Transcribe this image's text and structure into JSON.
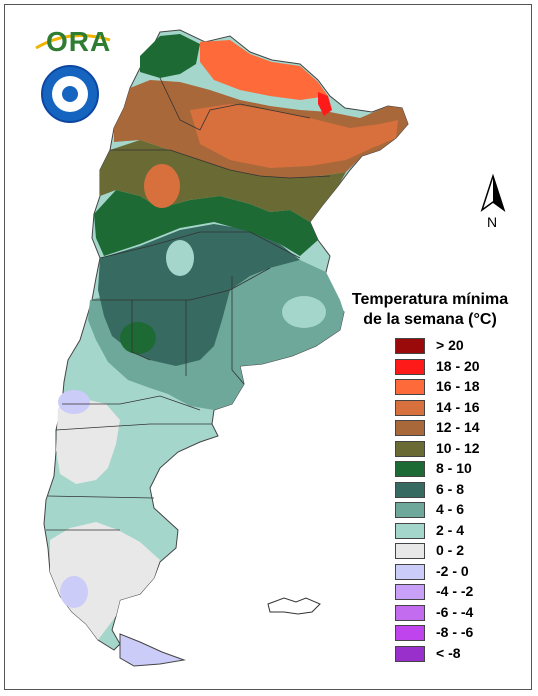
{
  "header": {
    "logo_text": "ORA"
  },
  "north_arrow": {
    "label": "N"
  },
  "legend": {
    "title_line1": "Temperatura mínima",
    "title_line2": "de la semana (°C)",
    "items": [
      {
        "label": "> 20",
        "color": "#9b0a0a"
      },
      {
        "label": "18 - 20",
        "color": "#ff1a1a"
      },
      {
        "label": "16 - 18",
        "color": "#ff6a3a"
      },
      {
        "label": "14 - 16",
        "color": "#d8703e"
      },
      {
        "label": "12 - 14",
        "color": "#a8683a"
      },
      {
        "label": "10 - 12",
        "color": "#6a6a34"
      },
      {
        "label": "8 - 10",
        "color": "#1e6a34"
      },
      {
        "label": "6 - 8",
        "color": "#376a60"
      },
      {
        "label": "4 - 6",
        "color": "#6ea89a"
      },
      {
        "label": "2 - 4",
        "color": "#a4d6cc"
      },
      {
        "label": "0 - 2",
        "color": "#e8e8e8"
      },
      {
        "label": "-2 - 0",
        "color": "#ccccf8"
      },
      {
        "label": "-4 - -2",
        "color": "#c8a0f8"
      },
      {
        "label": "-6 - -4",
        "color": "#c46cf0"
      },
      {
        "label": "-8 - -6",
        "color": "#c044ee"
      },
      {
        "label": "< -8",
        "color": "#9a30cc"
      }
    ]
  }
}
